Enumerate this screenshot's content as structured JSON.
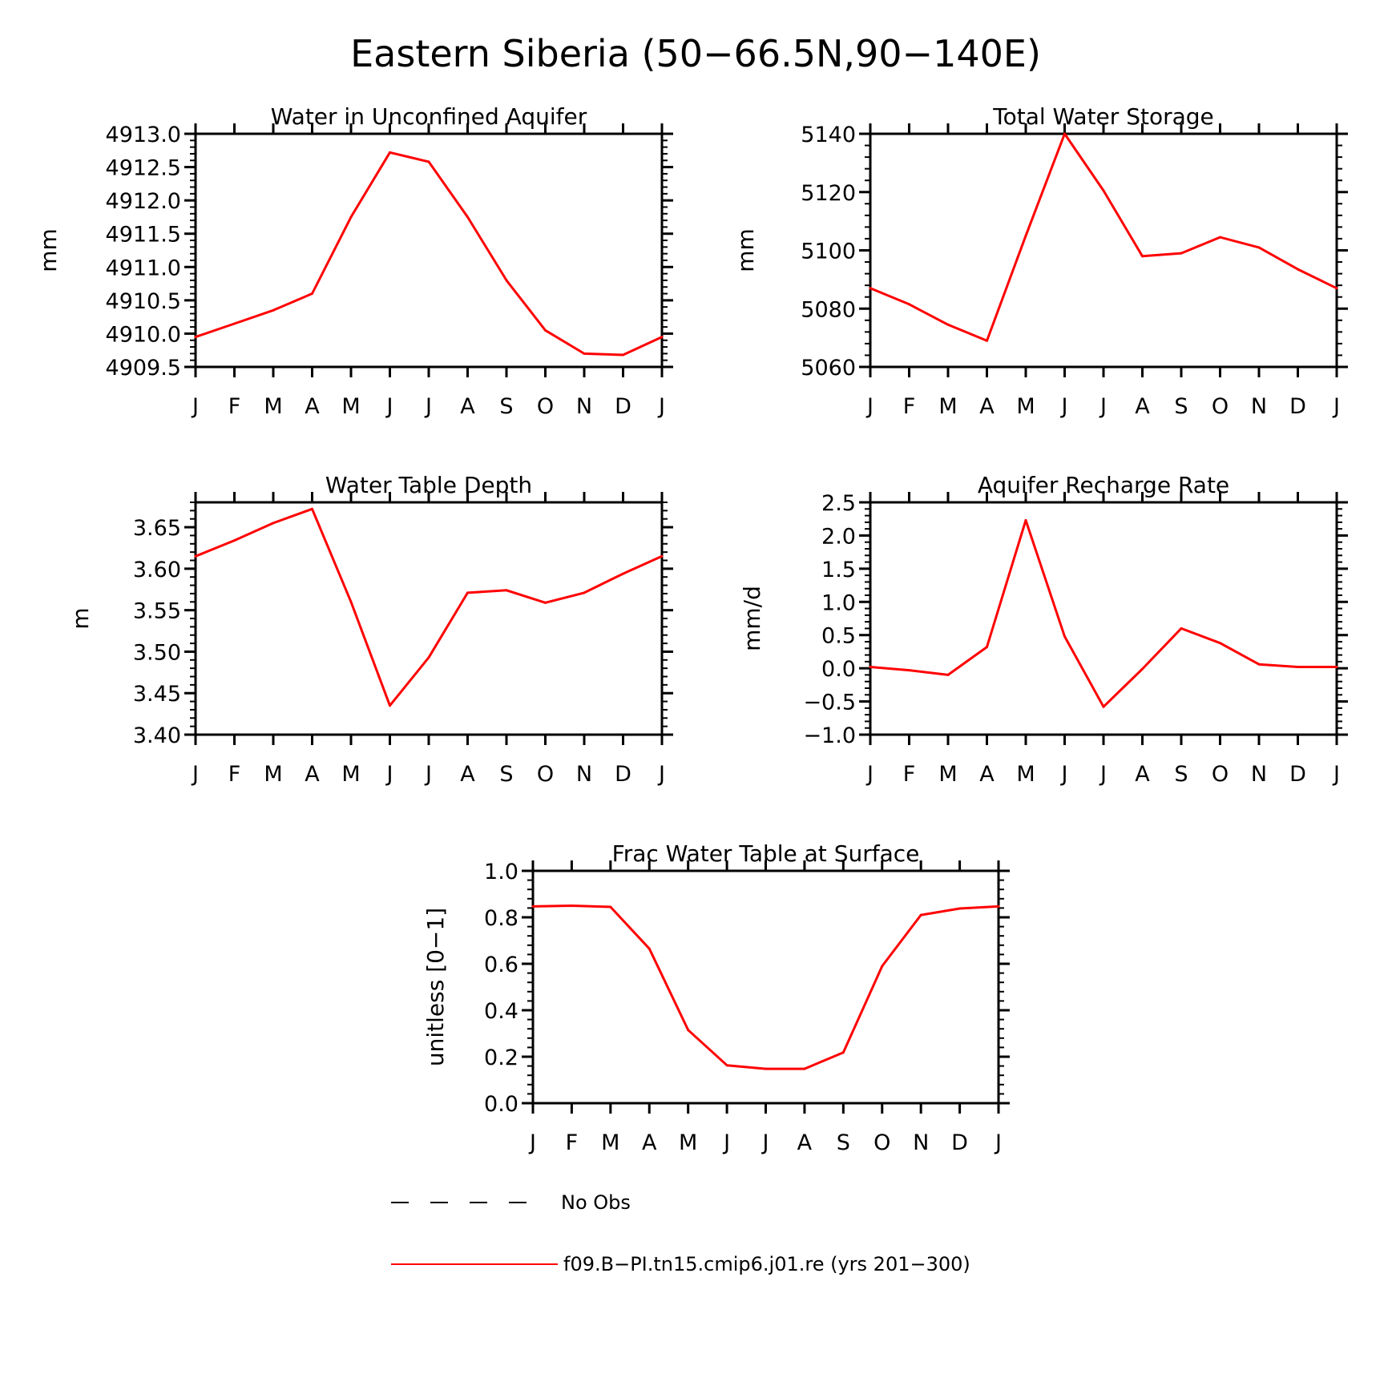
{
  "figure_title": "Eastern Siberia (50−66.5N,90−140E)",
  "colors": {
    "model_line": "#ff0000",
    "obs_line": "#000000",
    "axes": "#000000"
  },
  "legend": {
    "entries": [
      {
        "label": "No Obs",
        "style": "dashed",
        "color": "#000000"
      },
      {
        "label": "f09.B−PI.tn15.cmip6.j01.re (yrs 201−300)",
        "style": "solid",
        "color": "#ff0000"
      }
    ]
  },
  "chart_data": [
    {
      "id": "aquifer",
      "type": "line",
      "title": "Water in Unconfined Aquifer",
      "ylabel": "mm",
      "xlabel": "",
      "categories": [
        "J",
        "F",
        "M",
        "A",
        "M",
        "J",
        "J",
        "A",
        "S",
        "O",
        "N",
        "D",
        "J"
      ],
      "ylim": [
        4909.5,
        4913.0
      ],
      "yticks": [
        4909.5,
        4910.0,
        4910.5,
        4911.0,
        4911.5,
        4912.0,
        4912.5,
        4913.0
      ],
      "ytick_labels": [
        "4909.5",
        "4910.0",
        "4910.5",
        "4911.0",
        "4911.5",
        "4912.0",
        "4912.5",
        "4913.0"
      ],
      "y_minor_step": 0.1,
      "grid": false,
      "series": [
        {
          "values": [
            4909.95,
            4910.15,
            4910.35,
            4910.6,
            4911.75,
            4912.72,
            4912.58,
            4911.75,
            4910.8,
            4910.05,
            4909.7,
            4909.68,
            4909.95
          ]
        }
      ]
    },
    {
      "id": "tws",
      "type": "line",
      "title": "Total Water Storage",
      "ylabel": "mm",
      "xlabel": "",
      "categories": [
        "J",
        "F",
        "M",
        "A",
        "M",
        "J",
        "J",
        "A",
        "S",
        "O",
        "N",
        "D",
        "J"
      ],
      "ylim": [
        5060,
        5140
      ],
      "yticks": [
        5060,
        5080,
        5100,
        5120,
        5140
      ],
      "ytick_labels": [
        "5060",
        "5080",
        "5100",
        "5120",
        "5140"
      ],
      "y_minor_step": 4,
      "grid": false,
      "series": [
        {
          "values": [
            5087,
            5081.5,
            5074.5,
            5069,
            5105,
            5140,
            5120.5,
            5098,
            5099,
            5104.5,
            5101,
            5093.5,
            5087
          ]
        }
      ]
    },
    {
      "id": "wtd",
      "type": "line",
      "title": "Water Table Depth",
      "ylabel": "m",
      "xlabel": "",
      "categories": [
        "J",
        "F",
        "M",
        "A",
        "M",
        "J",
        "J",
        "A",
        "S",
        "O",
        "N",
        "D",
        "J"
      ],
      "ylim": [
        3.4,
        3.68
      ],
      "yticks": [
        3.4,
        3.45,
        3.5,
        3.55,
        3.6,
        3.65
      ],
      "ytick_labels": [
        "3.40",
        "3.45",
        "3.50",
        "3.55",
        "3.60",
        "3.65"
      ],
      "y_minor_step": 0.01,
      "grid": false,
      "series": [
        {
          "values": [
            3.615,
            3.634,
            3.655,
            3.672,
            3.56,
            3.435,
            3.493,
            3.571,
            3.574,
            3.559,
            3.571,
            3.594,
            3.615
          ]
        }
      ]
    },
    {
      "id": "recharge",
      "type": "line",
      "title": "Aquifer Recharge Rate",
      "ylabel": "mm/d",
      "xlabel": "",
      "categories": [
        "J",
        "F",
        "M",
        "A",
        "M",
        "J",
        "J",
        "A",
        "S",
        "O",
        "N",
        "D",
        "J"
      ],
      "ylim": [
        -1.0,
        2.5
      ],
      "yticks": [
        -1.0,
        -0.5,
        0.0,
        0.5,
        1.0,
        1.5,
        2.0,
        2.5
      ],
      "ytick_labels": [
        "−1.0",
        "−0.5",
        "0.0",
        "0.5",
        "1.0",
        "1.5",
        "2.0",
        "2.5"
      ],
      "y_minor_step": 0.1,
      "grid": false,
      "series": [
        {
          "values": [
            0.02,
            -0.03,
            -0.1,
            0.32,
            2.23,
            0.48,
            -0.58,
            -0.01,
            0.6,
            0.38,
            0.06,
            0.02,
            0.02
          ]
        }
      ]
    },
    {
      "id": "frac",
      "type": "line",
      "title": "Frac Water Table at Surface",
      "ylabel": "unitless [0−1]",
      "xlabel": "",
      "categories": [
        "J",
        "F",
        "M",
        "A",
        "M",
        "J",
        "J",
        "A",
        "S",
        "O",
        "N",
        "D",
        "J"
      ],
      "ylim": [
        0.0,
        1.0
      ],
      "yticks": [
        0.0,
        0.2,
        0.4,
        0.6,
        0.8,
        1.0
      ],
      "ytick_labels": [
        "0.0",
        "0.2",
        "0.4",
        "0.6",
        "0.8",
        "1.0"
      ],
      "y_minor_step": 0.04,
      "grid": false,
      "series": [
        {
          "values": [
            0.847,
            0.85,
            0.845,
            0.665,
            0.315,
            0.163,
            0.148,
            0.148,
            0.218,
            0.59,
            0.81,
            0.838,
            0.847
          ]
        }
      ]
    }
  ]
}
